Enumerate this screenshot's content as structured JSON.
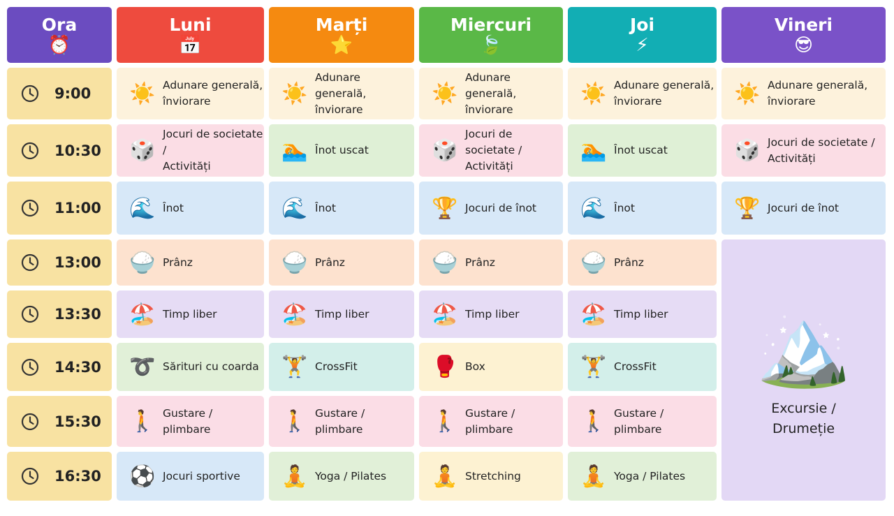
{
  "header": [
    {
      "label": "Ora",
      "icon": "⏰"
    },
    {
      "label": "Luni",
      "icon": "📅"
    },
    {
      "label": "Marți",
      "icon": "⭐"
    },
    {
      "label": "Miercuri",
      "icon": "🍃"
    },
    {
      "label": "Joi",
      "icon": "⚡"
    },
    {
      "label": "Vineri",
      "icon": "😎"
    }
  ],
  "rows": [
    {
      "time": "9:00",
      "cells": [
        {
          "icon": "☀️",
          "text": "Adunare generală,\nînviorare"
        },
        {
          "icon": "☀️",
          "text": "Adunare generală,\nînviorare"
        },
        {
          "icon": "☀️",
          "text": "Adunare generală,\nînviorare"
        },
        {
          "icon": "☀️",
          "text": "Adunare generală,\nînviorare"
        },
        {
          "icon": "☀️",
          "text": "Adunare generală,\nînviorare"
        }
      ]
    },
    {
      "time": "10:30",
      "cells": [
        {
          "icon": "🎲",
          "text": "Jocuri de societate /\nActivități"
        },
        {
          "icon": "🏊",
          "text": "Înot uscat"
        },
        {
          "icon": "🎲",
          "text": "Jocuri de societate /\nActivități"
        },
        {
          "icon": "🏊",
          "text": "Înot uscat"
        },
        {
          "icon": "🎲",
          "text": "Jocuri de societate /\nActivități"
        }
      ]
    },
    {
      "time": "11:00",
      "cells": [
        {
          "icon": "🌊",
          "text": "Înot"
        },
        {
          "icon": "🌊",
          "text": "Înot"
        },
        {
          "icon": "🏆",
          "text": "Jocuri de înot"
        },
        {
          "icon": "🌊",
          "text": "Înot"
        },
        {
          "icon": "🏆",
          "text": "Jocuri de înot"
        }
      ]
    },
    {
      "time": "13:00",
      "cells": [
        {
          "icon": "🍚",
          "text": "Prânz"
        },
        {
          "icon": "🍚",
          "text": "Prânz"
        },
        {
          "icon": "🍚",
          "text": "Prânz"
        },
        {
          "icon": "🍚",
          "text": "Prânz"
        }
      ]
    },
    {
      "time": "13:30",
      "cells": [
        {
          "icon": "🏖️",
          "text": "Timp liber"
        },
        {
          "icon": "🏖️",
          "text": "Timp liber"
        },
        {
          "icon": "🏖️",
          "text": "Timp liber"
        },
        {
          "icon": "🏖️",
          "text": "Timp liber"
        }
      ]
    },
    {
      "time": "14:30",
      "cells": [
        {
          "icon": "➰",
          "text": "Sărituri cu coarda"
        },
        {
          "icon": "🏋️",
          "text": "CrossFit"
        },
        {
          "icon": "🥊",
          "text": "Box"
        },
        {
          "icon": "🏋️",
          "text": "CrossFit"
        }
      ]
    },
    {
      "time": "15:30",
      "cells": [
        {
          "icon": "🚶",
          "text": "Gustare /\nplimbare"
        },
        {
          "icon": "🚶",
          "text": "Gustare /\nplimbare"
        },
        {
          "icon": "🚶",
          "text": "Gustare /\nplimbare"
        },
        {
          "icon": "🚶",
          "text": "Gustare /\nplimbare"
        }
      ]
    },
    {
      "time": "16:30",
      "cells": [
        {
          "icon": "⚽",
          "text": "Jocuri sportive"
        },
        {
          "icon": "🧘",
          "text": "Yoga / Pilates"
        },
        {
          "icon": "🧘",
          "text": "Stretching"
        },
        {
          "icon": "🧘",
          "text": "Yoga / Pilates"
        }
      ]
    }
  ],
  "excursion": {
    "icon": "🏔️",
    "text": "Excursie /\nDrumeție"
  }
}
